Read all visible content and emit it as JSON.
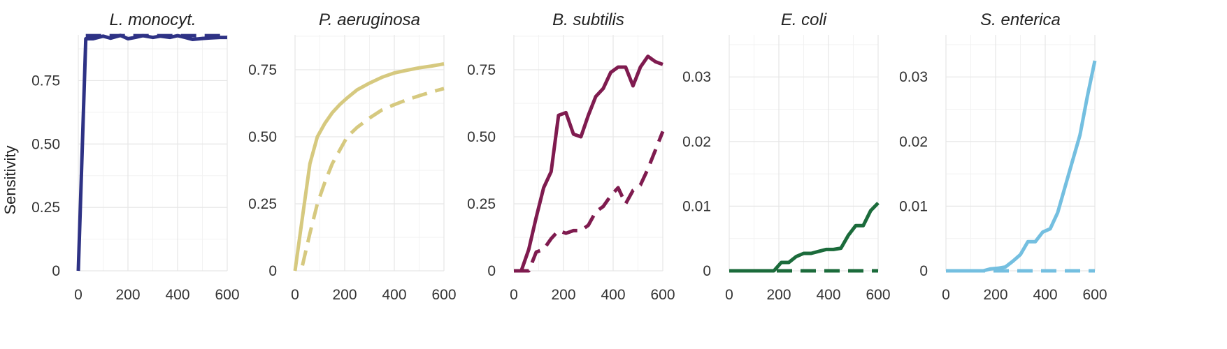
{
  "figure": {
    "ylabel": "Sensitivity"
  },
  "chart_data": [
    {
      "type": "line",
      "title": "L. monocyt.",
      "color": "#2e3285",
      "xlim": [
        0,
        600
      ],
      "ylim": [
        0,
        0.93
      ],
      "x_ticks": [
        0,
        200,
        400,
        600
      ],
      "x_tick_labels": [
        "0",
        "200",
        "400",
        "600"
      ],
      "y_ticks": [
        0,
        0.25,
        0.5,
        0.75
      ],
      "y_tick_labels": [
        "0",
        "0.25",
        "0.50",
        "0.75"
      ],
      "grid": true,
      "series": [
        {
          "style": "solid",
          "x": [
            0,
            30,
            60,
            100,
            130,
            170,
            200,
            230,
            260,
            300,
            330,
            370,
            400,
            430,
            460,
            500,
            530,
            570,
            600
          ],
          "y": [
            0,
            0.915,
            0.915,
            0.925,
            0.917,
            0.928,
            0.915,
            0.92,
            0.927,
            0.92,
            0.925,
            0.92,
            0.927,
            0.92,
            0.912,
            0.916,
            0.918,
            0.92,
            0.92
          ]
        },
        {
          "style": "dashed",
          "x": [
            30,
            100,
            200,
            300,
            400,
            500,
            600
          ],
          "y": [
            0.927,
            0.927,
            0.927,
            0.927,
            0.927,
            0.927,
            0.927
          ]
        }
      ]
    },
    {
      "type": "line",
      "title": "P. aeruginosa",
      "color": "#d6c97f",
      "xlim": [
        0,
        600
      ],
      "ylim": [
        0,
        0.88
      ],
      "x_ticks": [
        0,
        200,
        400,
        600
      ],
      "x_tick_labels": [
        "0",
        "200",
        "400",
        "600"
      ],
      "y_ticks": [
        0,
        0.25,
        0.5,
        0.75
      ],
      "y_tick_labels": [
        "0",
        "0.25",
        "0.50",
        "0.75"
      ],
      "grid": true,
      "series": [
        {
          "style": "solid",
          "x": [
            0,
            30,
            60,
            90,
            120,
            150,
            180,
            210,
            250,
            300,
            350,
            400,
            450,
            500,
            550,
            600
          ],
          "y": [
            0,
            0.2,
            0.4,
            0.5,
            0.55,
            0.59,
            0.62,
            0.645,
            0.675,
            0.7,
            0.722,
            0.738,
            0.748,
            0.757,
            0.764,
            0.772
          ]
        },
        {
          "style": "dashed",
          "x": [
            30,
            60,
            90,
            120,
            150,
            180,
            210,
            250,
            300,
            350,
            400,
            450,
            500,
            550,
            600
          ],
          "y": [
            0.02,
            0.14,
            0.25,
            0.33,
            0.4,
            0.45,
            0.5,
            0.535,
            0.57,
            0.6,
            0.62,
            0.638,
            0.653,
            0.667,
            0.68
          ]
        }
      ]
    },
    {
      "type": "line",
      "title": "B. subtilis",
      "color": "#7f1b4f",
      "xlim": [
        0,
        600
      ],
      "ylim": [
        0,
        0.88
      ],
      "x_ticks": [
        0,
        200,
        400,
        600
      ],
      "x_tick_labels": [
        "0",
        "200",
        "400",
        "600"
      ],
      "y_ticks": [
        0,
        0.25,
        0.5,
        0.75
      ],
      "y_tick_labels": [
        "0",
        "0.25",
        "0.50",
        "0.75"
      ],
      "grid": true,
      "series": [
        {
          "style": "solid",
          "x": [
            0,
            30,
            60,
            90,
            120,
            150,
            180,
            210,
            240,
            270,
            300,
            330,
            360,
            390,
            420,
            450,
            480,
            510,
            540,
            570,
            600
          ],
          "y": [
            0,
            0,
            0.08,
            0.2,
            0.31,
            0.37,
            0.58,
            0.59,
            0.51,
            0.5,
            0.58,
            0.65,
            0.68,
            0.74,
            0.76,
            0.76,
            0.69,
            0.76,
            0.8,
            0.78,
            0.77
          ]
        },
        {
          "style": "dashed",
          "x": [
            0,
            30,
            60,
            90,
            120,
            150,
            180,
            210,
            240,
            270,
            300,
            330,
            360,
            390,
            420,
            450,
            480,
            510,
            540,
            570,
            600
          ],
          "y": [
            0,
            0,
            0,
            0.07,
            0.08,
            0.12,
            0.15,
            0.14,
            0.15,
            0.15,
            0.17,
            0.22,
            0.24,
            0.28,
            0.31,
            0.25,
            0.3,
            0.32,
            0.38,
            0.45,
            0.52
          ]
        }
      ]
    },
    {
      "type": "line",
      "title": "E. coli",
      "color": "#1b6b3b",
      "xlim": [
        0,
        600
      ],
      "ylim": [
        0,
        0.0365
      ],
      "x_ticks": [
        0,
        200,
        400,
        600
      ],
      "x_tick_labels": [
        "0",
        "200",
        "400",
        "600"
      ],
      "y_ticks": [
        0,
        0.01,
        0.02,
        0.03
      ],
      "y_tick_labels": [
        "0",
        "0.01",
        "0.02",
        "0.03"
      ],
      "grid": true,
      "series": [
        {
          "style": "solid",
          "x": [
            0,
            30,
            60,
            90,
            120,
            150,
            180,
            210,
            240,
            270,
            300,
            330,
            360,
            390,
            420,
            450,
            480,
            510,
            540,
            570,
            600
          ],
          "y": [
            0,
            0,
            0,
            0,
            0,
            0,
            0,
            0.0013,
            0.0013,
            0.0022,
            0.0027,
            0.0027,
            0.003,
            0.0033,
            0.0033,
            0.0035,
            0.0055,
            0.007,
            0.007,
            0.0093,
            0.0105
          ]
        },
        {
          "style": "dashed",
          "x": [
            0,
            100,
            200,
            300,
            400,
            500,
            600
          ],
          "y": [
            0,
            0,
            0,
            0,
            0,
            0,
            0
          ]
        }
      ]
    },
    {
      "type": "line",
      "title": "S. enterica",
      "color": "#74bfe0",
      "xlim": [
        0,
        600
      ],
      "ylim": [
        0,
        0.0365
      ],
      "x_ticks": [
        0,
        200,
        400,
        600
      ],
      "x_tick_labels": [
        "0",
        "200",
        "400",
        "600"
      ],
      "y_ticks": [
        0,
        0.01,
        0.02,
        0.03
      ],
      "y_tick_labels": [
        "0",
        "0.01",
        "0.02",
        "0.03"
      ],
      "grid": true,
      "series": [
        {
          "style": "solid",
          "x": [
            0,
            30,
            60,
            90,
            120,
            150,
            180,
            210,
            240,
            270,
            300,
            330,
            360,
            390,
            420,
            450,
            480,
            510,
            540,
            570,
            600
          ],
          "y": [
            0,
            0,
            0,
            0,
            0,
            0,
            0.0003,
            0.0004,
            0.0006,
            0.0015,
            0.0025,
            0.0045,
            0.0045,
            0.006,
            0.0065,
            0.009,
            0.013,
            0.017,
            0.021,
            0.027,
            0.0325
          ]
        },
        {
          "style": "dashed",
          "x": [
            0,
            100,
            200,
            300,
            400,
            500,
            600
          ],
          "y": [
            0,
            0,
            0,
            0,
            0,
            0,
            0
          ]
        }
      ]
    }
  ]
}
